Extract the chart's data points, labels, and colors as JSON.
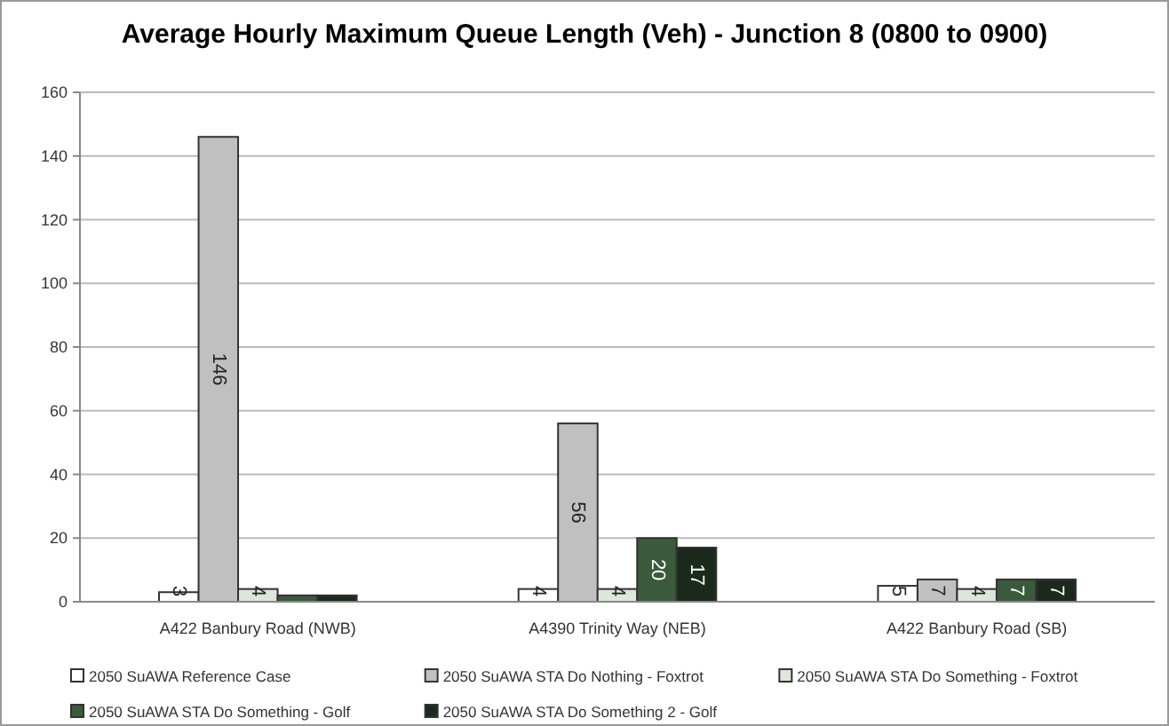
{
  "chart_data": {
    "type": "bar",
    "title": "Average Hourly Maximum Queue Length (Veh) - Junction 8 (0800 to 0900)",
    "categories": [
      "A422 Banbury Road (NWB)",
      "A4390 Trinity Way (NEB)",
      "A422 Banbury Road (SB)"
    ],
    "series": [
      {
        "name": "2050 SuAWA Reference Case",
        "color": "#ffffff",
        "values": [
          3,
          4,
          5
        ],
        "value_labels": [
          "3",
          "4",
          "5"
        ]
      },
      {
        "name": "2050 SuAWA STA Do Nothing - Foxtrot",
        "color": "#c0c0c0",
        "values": [
          146,
          56,
          7
        ],
        "value_labels": [
          "146",
          "56",
          "7"
        ]
      },
      {
        "name": "2050 SuAWA STA Do Something - Foxtrot",
        "color": "#dde6da",
        "values": [
          4,
          4,
          4
        ],
        "value_labels": [
          "4",
          "4",
          "4"
        ]
      },
      {
        "name": "2050 SuAWA STA Do Something - Golf",
        "color": "#3b5a3c",
        "values": [
          2,
          20,
          7
        ],
        "value_labels": [
          null,
          "20",
          "7"
        ]
      },
      {
        "name": "2050 SuAWA STA Do Something 2 - Golf",
        "color": "#1c2a1e",
        "values": [
          2,
          17,
          7
        ],
        "value_labels": [
          null,
          "17",
          "7"
        ]
      }
    ],
    "ylim": [
      0,
      160
    ],
    "yticks": [
      0,
      20,
      40,
      60,
      80,
      100,
      120,
      140,
      160
    ],
    "grid": "y",
    "legend": "bottom"
  }
}
